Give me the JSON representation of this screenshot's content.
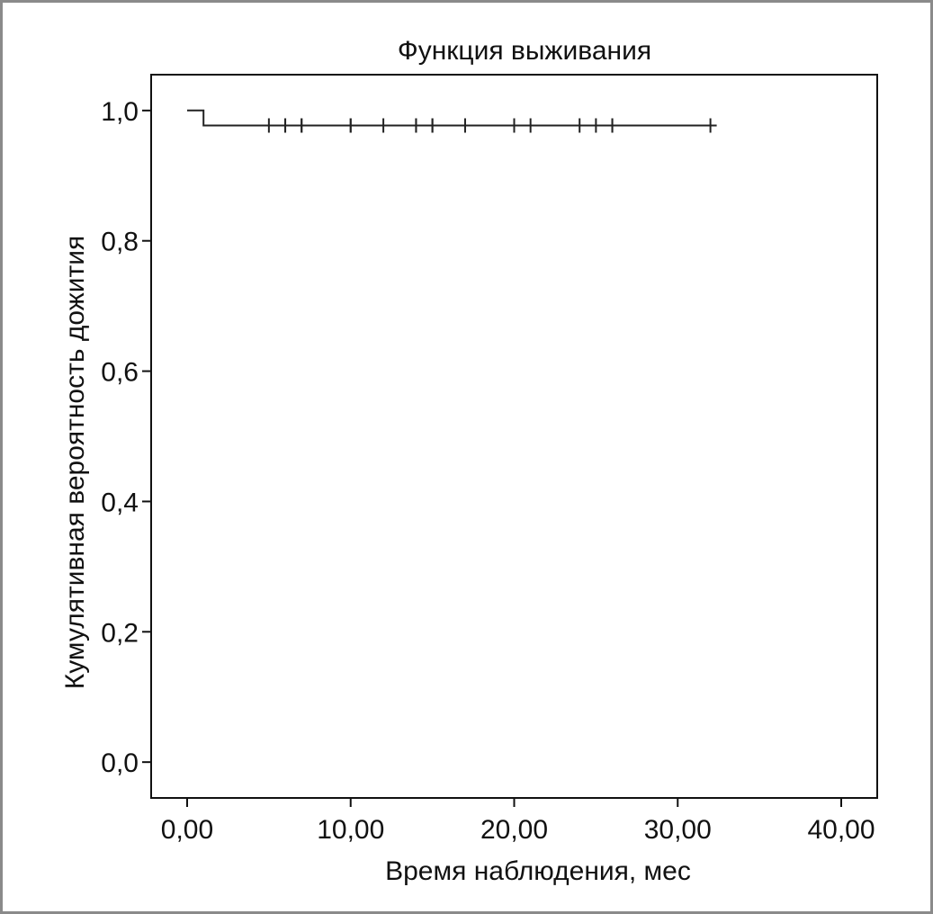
{
  "chart_data": {
    "type": "line",
    "title": "Функция выживания",
    "xlabel": "Время наблюдения, мес",
    "ylabel": "Кумулятивная вероятность дожития",
    "xlim": [
      -2.2,
      42.2
    ],
    "ylim": [
      -0.055,
      1.055
    ],
    "x_ticks": [
      0,
      10,
      20,
      30,
      40
    ],
    "x_tick_labels": [
      "0,00",
      "10,00",
      "20,00",
      "30,00",
      "40,00"
    ],
    "y_ticks": [
      0,
      0.2,
      0.4,
      0.6,
      0.8,
      1.0
    ],
    "y_tick_labels": [
      "0,0",
      "0,2",
      "0,4",
      "0,6",
      "0,8",
      "1,0"
    ],
    "grid": false,
    "legend": "none",
    "line_color": "#222222",
    "series": [
      {
        "step_points": [
          [
            0,
            1.0
          ],
          [
            1.0,
            1.0
          ],
          [
            1.0,
            0.977
          ],
          [
            32,
            0.977
          ]
        ],
        "censored": [
          [
            5,
            0.977
          ],
          [
            6,
            0.977
          ],
          [
            6,
            0.977
          ],
          [
            7,
            0.977
          ],
          [
            7,
            0.977
          ],
          [
            10,
            0.977
          ],
          [
            10,
            0.977
          ],
          [
            12,
            0.977
          ],
          [
            14,
            0.977
          ],
          [
            14,
            0.977
          ],
          [
            15,
            0.977
          ],
          [
            15,
            0.977
          ],
          [
            17,
            0.977
          ],
          [
            20,
            0.977
          ],
          [
            20,
            0.977
          ],
          [
            21,
            0.977
          ],
          [
            24,
            0.977
          ],
          [
            25,
            0.977
          ],
          [
            26,
            0.977
          ],
          [
            26,
            0.977
          ],
          [
            32,
            0.977
          ]
        ]
      }
    ]
  }
}
